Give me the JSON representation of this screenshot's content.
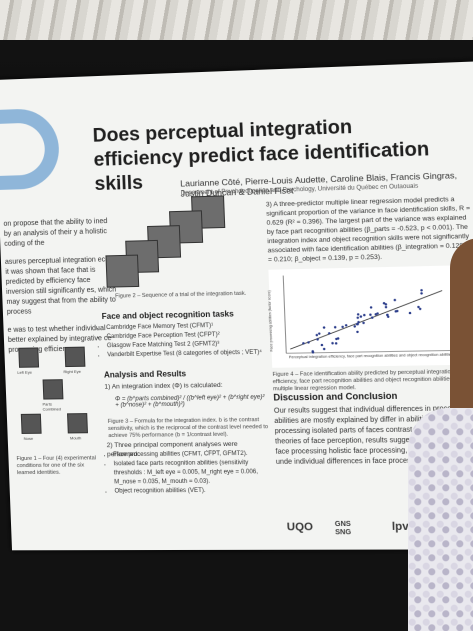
{
  "poster": {
    "title": "Does perceptual integration efficiency predict face identification skills",
    "authors": "Laurianne Côté, Pierre-Louis Audette, Caroline Blais, Francis Gingras, Justin Duncan & Daniel Fiset",
    "affiliation": "Department of Psychoeducation and Psychology, Université du Québec en Outaouais",
    "intro_1": "on propose that the ability to ined by an analysis of their y a holistic coding of the",
    "intro_2": "asures perceptual integration eces, it was shown that face that is predicted by efficiency face inversion still significantly es, which may suggest that from the ability to process",
    "intro_3": "e was to test whether individual better explained by integrative ce processing efficiency.",
    "faces_caption": "Figure 1 – Four (4) experimental conditions for one of the six learned identities.",
    "face_labels": [
      "Left Eye",
      "Right Eye",
      "Parts Combined",
      "Nose",
      "Mouth"
    ],
    "stim_caption": "Figure 2 – Sequence of a trial of the integration task.",
    "tasks_heading": "Face and object recognition tasks",
    "tasks": [
      "Cambridge Face Memory Test (CFMT)¹",
      "Cambridge Face Perception Test (CFPT)²",
      "Glasgow Face Matching Test 2 (GFMT2)³",
      "Vanderbilt Expertise Test (8 categories of objects ; VET)⁴"
    ],
    "analysis_heading": "Analysis and Results",
    "analysis_1": "1) An integration index (Φ) is calculated:",
    "formula": "Φ = (b^parts combined)² / ((b^left eye)² + (b^right eye)² + (b^nose)² + (b^mouth)²)",
    "formula_caption": "Figure 3 – Formula for the integration index. b is the contrast sensitivity, which is the reciprocal of the contrast level needed to achieve 75% performance (b = 1/contrast level).",
    "analysis_2": "2) Three principal component analyses were performed:",
    "pca": [
      "Face processing abilities (CFMT, CFPT, GFMT2).",
      "Isolated face parts recognition abilities (sensitivity thresholds : M_left eye = 0.005, M_right eye = 0.006, M_nose = 0.035, M_mouth = 0.03).",
      "Object recognition abilities (VET)."
    ],
    "result_3": "3) A three-predictor multiple linear regression model predicts a significant proportion of the variance in face identification skills, R = 0.629 (R² = 0.396). The largest part of the variance was explained by face part recognition abilities (β_parts = -0.523, p < 0.001). The integration index and object recognition skills were not significantly associated with face identification abilities (β_integration = 0.128, p = 0.210; β_object = 0.139, p = 0.253).",
    "scatter_ylabel": "Face processing abilities (factor score)",
    "scatter_xlabel": "Perceptual integration efficiency, face part recognition abilities and object recognition abilities",
    "scatter_caption": "Figure 4 – Face identification ability predicted by perceptual integration efficiency, face part recognition abilities and object recognition abilities in a multiple linear regression model.",
    "discussion_heading": "Discussion and Conclusion",
    "discussion": "Our results suggest that individual differences in processing abilities are mostly explained by differ in abilities for processing isolated parts of faces contrast with classical theories of face perception, results suggest that part-based face processing holistic face processing, is the main factor unde individual differences in face processing abilities.",
    "logos": [
      "UQO",
      "GNS SNG",
      "lpvs-uc"
    ]
  }
}
